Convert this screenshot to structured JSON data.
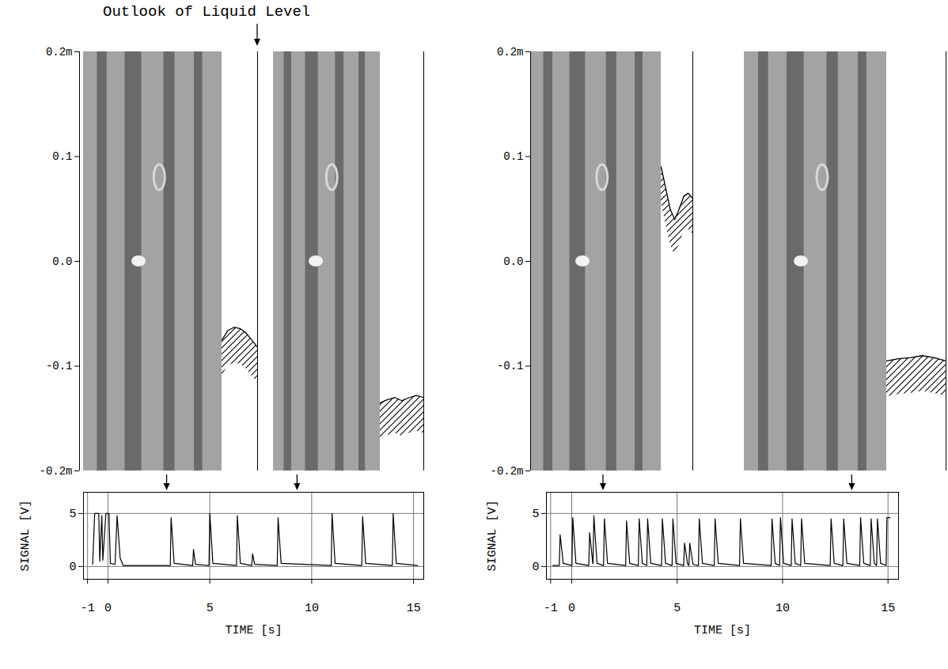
{
  "annotation": "Outlook of Liquid Level",
  "chart_data": [
    {
      "type": "line",
      "xlabel": "TIME [s]",
      "ylabel": "SIGNAL [V]",
      "xlim": [
        -1.2,
        15.5
      ],
      "xticks": [
        -1,
        0,
        5,
        10,
        15
      ],
      "ylim": [
        -1.2,
        7
      ],
      "yticks": [
        0,
        5
      ],
      "grid": true,
      "color": "#000000",
      "x": [
        -0.75,
        -0.65,
        -0.45,
        -0.4,
        -0.3,
        -0.25,
        -0.1,
        0.05,
        0.12,
        0.35,
        0.45,
        0.6,
        0.75,
        3.06,
        3.1,
        3.25,
        4.16,
        4.2,
        4.3,
        4.96,
        5.0,
        5.15,
        6.31,
        6.35,
        6.5,
        7.06,
        7.1,
        7.2,
        8.31,
        8.35,
        8.5,
        10.96,
        11.0,
        11.15,
        12.46,
        12.5,
        12.65,
        13.96,
        14.0,
        14.15,
        15.2
      ],
      "values": [
        0.2,
        5,
        5,
        0.5,
        4.8,
        0.6,
        5,
        5,
        0.3,
        0.2,
        4.8,
        0.8,
        0.1,
        0.1,
        4.6,
        0.3,
        0.1,
        1.6,
        0.2,
        0.1,
        5.0,
        0.3,
        0.1,
        4.8,
        0.3,
        0.1,
        1.2,
        0.2,
        0.1,
        4.6,
        0.3,
        0.1,
        5.0,
        0.3,
        0.1,
        4.7,
        0.3,
        0.1,
        5.0,
        0.3,
        0.1
      ],
      "level_lim": [
        -0.2,
        0.2
      ],
      "level_ticks": [
        {
          "value": 0.2,
          "label": "0.2m"
        },
        0.1,
        {
          "value": 0,
          "label": "0.0"
        },
        -0.1,
        {
          "value": -0.2,
          "label": "-0.2m"
        }
      ],
      "snapshots": [
        {
          "time": 2.9,
          "level": [
            -0.075,
            -0.066,
            -0.063,
            -0.064,
            -0.068,
            -0.075,
            -0.082
          ]
        },
        {
          "time": 9.3,
          "level": [
            -0.135,
            -0.132,
            -0.13,
            -0.133,
            -0.13,
            -0.128,
            -0.13
          ]
        }
      ]
    },
    {
      "type": "line",
      "xlabel": "TIME [s]",
      "ylabel": "SIGNAL [V]",
      "xlim": [
        -1.2,
        15.5
      ],
      "xticks": [
        -1,
        0,
        5,
        10,
        15
      ],
      "ylim": [
        -1.2,
        7
      ],
      "yticks": [
        0,
        5
      ],
      "grid": true,
      "color": "#000000",
      "x": [
        -0.9,
        -0.59,
        -0.55,
        -0.4,
        0.01,
        0.05,
        0.2,
        0.81,
        0.85,
        1.0,
        1.01,
        1.05,
        1.2,
        1.51,
        1.55,
        1.7,
        2.56,
        2.6,
        2.75,
        3.16,
        3.2,
        3.35,
        3.56,
        3.6,
        3.75,
        4.26,
        4.3,
        4.45,
        4.76,
        4.8,
        4.95,
        5.31,
        5.35,
        5.5,
        5.56,
        5.6,
        5.75,
        6.01,
        6.05,
        6.2,
        6.76,
        6.8,
        6.95,
        7.96,
        8.0,
        8.15,
        9.46,
        9.5,
        9.65,
        9.86,
        9.9,
        10.05,
        10.41,
        10.45,
        10.6,
        10.86,
        10.9,
        11.05,
        12.26,
        12.3,
        12.45,
        12.86,
        12.9,
        13.05,
        13.66,
        13.7,
        13.85,
        14.16,
        14.2,
        14.35,
        14.46,
        14.5,
        14.65,
        14.91,
        14.95,
        15.1
      ],
      "values": [
        0.1,
        0.1,
        3.0,
        0.3,
        0.1,
        4.6,
        0.3,
        0.1,
        3.2,
        0.3,
        0.3,
        4.8,
        0.3,
        0.1,
        4.5,
        0.3,
        0.1,
        4.3,
        0.3,
        0.1,
        4.5,
        0.3,
        0.1,
        4.5,
        0.3,
        0.1,
        4.5,
        0.3,
        0.1,
        4.5,
        0.3,
        0.1,
        2.2,
        0.2,
        0.1,
        2.2,
        0.2,
        0.1,
        4.5,
        0.3,
        0.1,
        4.5,
        0.3,
        0.1,
        4.5,
        0.3,
        0.1,
        4.5,
        0.3,
        0.1,
        4.6,
        0.3,
        0.1,
        4.5,
        0.3,
        0.1,
        4.5,
        0.3,
        0.1,
        4.5,
        0.3,
        0.1,
        4.5,
        0.3,
        0.1,
        4.6,
        0.3,
        0.1,
        4.5,
        0.3,
        0.1,
        4.5,
        0.3,
        0.1,
        4.6,
        4.6
      ],
      "level_lim": [
        -0.2,
        0.2
      ],
      "level_ticks": [
        {
          "value": 0.2,
          "label": "0.2m"
        },
        0.1,
        {
          "value": 0,
          "label": "0.0"
        },
        -0.1,
        {
          "value": -0.2,
          "label": "-0.2m"
        }
      ],
      "snapshots": [
        {
          "time": 1.5,
          "level": [
            0.09,
            0.07,
            0.05,
            0.04,
            0.05,
            0.062,
            0.065,
            0.06
          ]
        },
        {
          "time": 13.3,
          "level": [
            -0.095,
            -0.093,
            -0.092,
            -0.09,
            -0.092,
            -0.095
          ]
        }
      ]
    }
  ]
}
